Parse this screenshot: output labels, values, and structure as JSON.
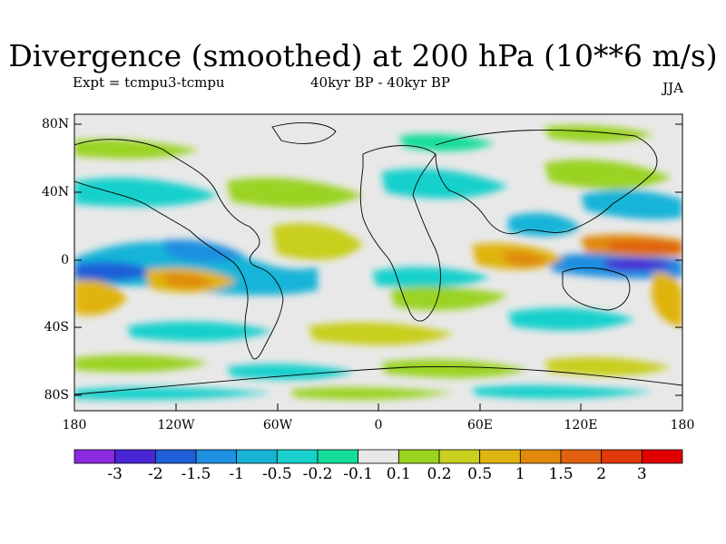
{
  "title": "Divergence (smoothed) at 200 hPa (10**6 m/s)",
  "subtitle_left": "Expt = tcmpu3-tcmpu",
  "subtitle_center": "40kyr BP - 40kyr BP",
  "subtitle_right": "JJA",
  "y_ticks": [
    "80N",
    "40N",
    "0",
    "40S",
    "80S"
  ],
  "x_ticks": [
    "180",
    "120W",
    "60W",
    "0",
    "60E",
    "120E",
    "180"
  ],
  "colorbar": {
    "labels": [
      "-3",
      "-2",
      "-1.5",
      "-1",
      "-0.5",
      "-0.2",
      "-0.1",
      "0.1",
      "0.2",
      "0.5",
      "1",
      "1.5",
      "2",
      "3"
    ],
    "colors": [
      "#8a2be2",
      "#4a25d6",
      "#1f5fd8",
      "#1f8fe0",
      "#17b4d8",
      "#17d0cc",
      "#13dd9b",
      "#e8e8e8",
      "#9ad321",
      "#c8cf1f",
      "#e0b410",
      "#e08a0a",
      "#e06010",
      "#e03a0a",
      "#e00000"
    ]
  }
}
